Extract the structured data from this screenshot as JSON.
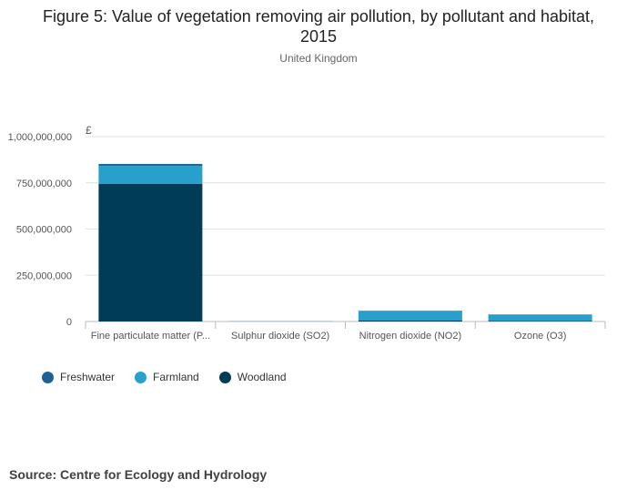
{
  "chart_data": {
    "type": "bar",
    "stacked": true,
    "title": "Figure 5: Value of vegetation removing air pollution, by pollutant and habitat, 2015",
    "subtitle": "United Kingdom",
    "ylabel": "£",
    "xlabel": "",
    "ylim": [
      0,
      1000000000
    ],
    "yticks": [
      0,
      250000000,
      500000000,
      750000000,
      1000000000
    ],
    "ytick_labels": [
      "0",
      "250,000,000",
      "500,000,000",
      "750,000,000",
      "1,000,000,000"
    ],
    "categories": [
      "Fine particulate matter (P...",
      "Sulphur dioxide (SO2)",
      "Nitrogen dioxide (NO2)",
      "Ozone (O3)"
    ],
    "series": [
      {
        "name": "Woodland",
        "color": "#003c57",
        "values": [
          744000000,
          500000,
          5000000,
          4000000
        ]
      },
      {
        "name": "Farmland",
        "color": "#27a0cc",
        "values": [
          98000000,
          300000,
          53000000,
          34000000
        ]
      },
      {
        "name": "Freshwater",
        "color": "#206095",
        "values": [
          10000000,
          50000,
          500000,
          400000
        ]
      }
    ],
    "grid": true,
    "legend_position": "bottom-left"
  },
  "legend": {
    "items": [
      {
        "label": "Freshwater",
        "color": "#206095"
      },
      {
        "label": "Farmland",
        "color": "#27a0cc"
      },
      {
        "label": "Woodland",
        "color": "#003c57"
      }
    ]
  },
  "footer": {
    "source": "Source: Centre for Ecology and Hydrology"
  }
}
